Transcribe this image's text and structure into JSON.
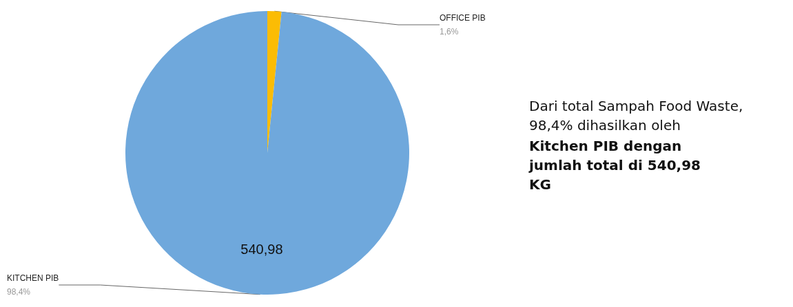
{
  "chart_data": {
    "type": "pie",
    "categories": [
      "OFFICE PIB",
      "KITCHEN PIB"
    ],
    "values": [
      1.6,
      98.4
    ],
    "colors": [
      "#fbbc04",
      "#6fa8dc"
    ],
    "value_labels": [
      "1,6%",
      "98,4%"
    ],
    "legend": false,
    "annotations": [
      {
        "text": "540,98",
        "x": "KITCHEN PIB"
      },
      "Dari total Sampah Food Waste, 98,4% dihasilkan oleh",
      "Kitchen PIB dengan jumlah total di 540,98 KG"
    ]
  }
}
